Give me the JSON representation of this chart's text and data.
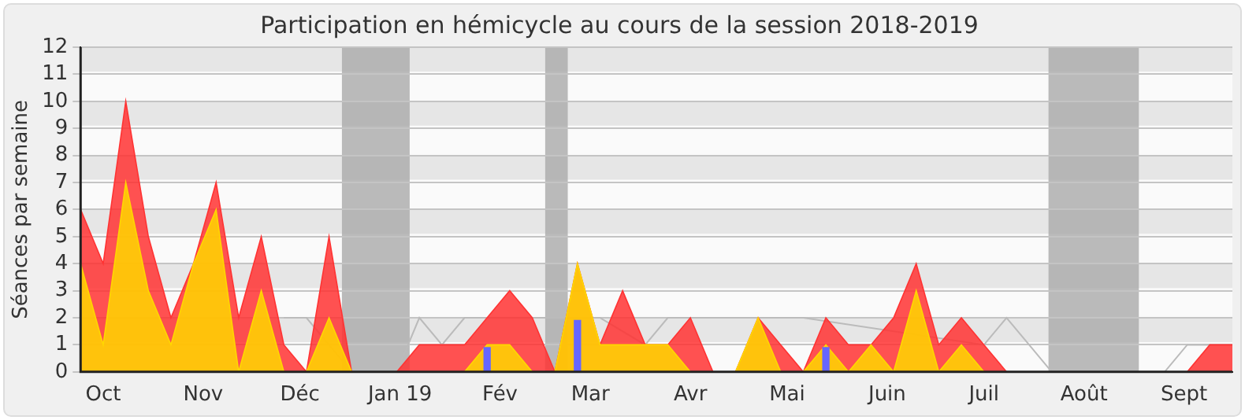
{
  "chart_data": {
    "type": "area",
    "title": "Participation en hémicycle au cours de la session 2018-2019",
    "ylabel": "Séances par semaine",
    "x": [
      "2018-09-24",
      "2018-10-01",
      "2018-10-08",
      "2018-10-15",
      "2018-10-22",
      "2018-10-29",
      "2018-11-05",
      "2018-11-12",
      "2018-11-19",
      "2018-11-26",
      "2018-12-03",
      "2018-12-10",
      "2018-12-17",
      "2018-12-24",
      "2018-12-31",
      "2019-01-07",
      "2019-01-14",
      "2019-01-21",
      "2019-01-28",
      "2019-02-04",
      "2019-02-11",
      "2019-02-18",
      "2019-02-25",
      "2019-03-04",
      "2019-03-11",
      "2019-03-18",
      "2019-03-25",
      "2019-04-01",
      "2019-04-08",
      "2019-04-15",
      "2019-04-22",
      "2019-04-29",
      "2019-05-06",
      "2019-05-13",
      "2019-05-20",
      "2019-05-27",
      "2019-06-03",
      "2019-06-10",
      "2019-06-17",
      "2019-06-24",
      "2019-07-01",
      "2019-07-08",
      "2019-07-15",
      "2019-07-22",
      "2019-07-29",
      "2019-08-05",
      "2019-08-12",
      "2019-08-19",
      "2019-08-26",
      "2019-09-02",
      "2019-09-09",
      "2019-09-16"
    ],
    "series": [
      {
        "type": "line",
        "color": "#bbbbbb",
        "values": [
          null,
          null,
          null,
          null,
          null,
          null,
          null,
          null,
          null,
          2,
          2,
          null,
          0,
          0,
          0,
          2,
          1,
          2,
          null,
          null,
          null,
          null,
          null,
          2,
          null,
          1,
          2,
          2,
          null,
          null,
          null,
          2,
          2,
          null,
          null,
          null,
          null,
          null,
          null,
          null,
          1,
          2,
          1,
          0,
          0,
          0,
          0,
          0,
          0,
          1,
          1,
          null
        ]
      },
      {
        "color": "#ff3333",
        "values": [
          6,
          4,
          10,
          5,
          2,
          4,
          7,
          2,
          5,
          1,
          0,
          5,
          0,
          0,
          0,
          1,
          1,
          1,
          2,
          3,
          2,
          0,
          4,
          1,
          3,
          1,
          1,
          2,
          0,
          0,
          2,
          1,
          0,
          2,
          1,
          1,
          2,
          4,
          1,
          2,
          1,
          0,
          0,
          0,
          0,
          0,
          0,
          0,
          0,
          0,
          1,
          1
        ]
      },
      {
        "color": "#ffd700",
        "values": [
          4,
          1,
          7,
          3,
          1,
          4,
          6,
          0,
          3,
          0,
          0,
          2,
          0,
          0,
          0,
          0,
          0,
          0,
          1,
          1,
          0,
          0,
          4,
          1,
          1,
          1,
          1,
          0,
          0,
          0,
          2,
          0,
          0,
          1,
          0,
          1,
          0,
          3,
          0,
          1,
          0,
          0,
          0,
          0,
          0,
          0,
          0,
          0,
          0,
          0,
          0,
          0
        ]
      },
      {
        "type": "bar",
        "color": "#6666ff",
        "x": [
          "2019-01-28",
          "2019-02-25",
          "2019-05-13"
        ],
        "values": [
          0.9,
          1.9,
          0.9
        ]
      }
    ],
    "bands": [
      {
        "axis": "x",
        "from": "2018-12-14",
        "to": "2019-01-04",
        "color": "#aaaaaa"
      },
      {
        "axis": "x",
        "from": "2019-02-15",
        "to": "2019-02-22",
        "color": "#aaaaaa"
      },
      {
        "axis": "x",
        "from": "2019-07-21",
        "to": "2019-08-18",
        "color": "#aaaaaa"
      }
    ],
    "xlim": [
      "2018-09-24",
      "2019-09-16"
    ],
    "xticks": [
      {
        "value": "2018-10-01",
        "label": "Oct"
      },
      {
        "value": "2018-11-01",
        "label": "Nov"
      },
      {
        "value": "2018-12-01",
        "label": "Déc"
      },
      {
        "value": "2019-01-01",
        "label": "Jan 19"
      },
      {
        "value": "2019-02-01",
        "label": "Fév"
      },
      {
        "value": "2019-03-01",
        "label": "Mar"
      },
      {
        "value": "2019-04-01",
        "label": "Avr"
      },
      {
        "value": "2019-05-01",
        "label": "Mai"
      },
      {
        "value": "2019-06-01",
        "label": "Juin"
      },
      {
        "value": "2019-07-01",
        "label": "Juil"
      },
      {
        "value": "2019-08-01",
        "label": "Août"
      },
      {
        "value": "2019-09-01",
        "label": "Sept"
      }
    ],
    "ylim": [
      0,
      12
    ],
    "yticks": [
      0,
      1,
      2,
      3,
      4,
      5,
      6,
      7,
      8,
      9,
      10,
      11,
      12
    ],
    "grid": "y",
    "legend": false
  }
}
